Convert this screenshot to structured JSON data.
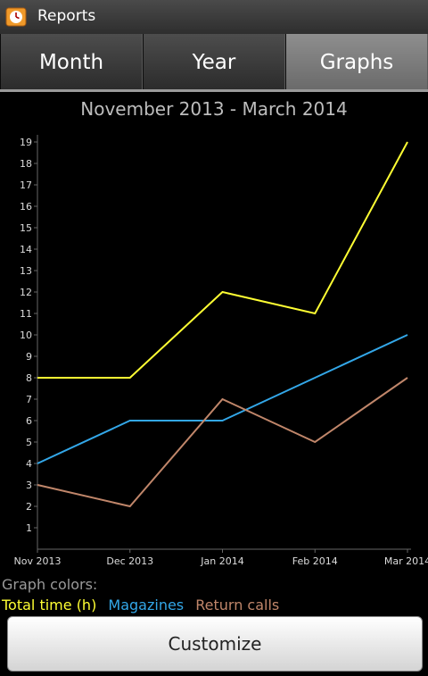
{
  "window": {
    "title": "Reports"
  },
  "tabs": [
    {
      "label": "Month",
      "active": false
    },
    {
      "label": "Year",
      "active": false
    },
    {
      "label": "Graphs",
      "active": true
    }
  ],
  "graph": {
    "title": "November 2013 - March 2014"
  },
  "legend": {
    "heading": "Graph colors:",
    "items": [
      {
        "label": "Total time (h)",
        "color": "#ffff33"
      },
      {
        "label": "Magazines",
        "color": "#33a7e8"
      },
      {
        "label": "Return calls",
        "color": "#c0866a"
      }
    ]
  },
  "buttons": {
    "customize": "Customize"
  },
  "chart_data": {
    "type": "line",
    "title": "November 2013 - March 2014",
    "categories": [
      "Nov 2013",
      "Dec 2013",
      "Jan 2014",
      "Feb 2014",
      "Mar 2014"
    ],
    "series": [
      {
        "name": "Total time (h)",
        "color": "#ffff33",
        "values": [
          8,
          8,
          12,
          11,
          19
        ]
      },
      {
        "name": "Magazines",
        "color": "#33a7e8",
        "values": [
          4,
          6,
          6,
          8,
          10
        ]
      },
      {
        "name": "Return calls",
        "color": "#c0866a",
        "values": [
          3,
          2,
          7,
          5,
          8
        ]
      }
    ],
    "yticks": [
      1,
      2,
      3,
      4,
      5,
      6,
      7,
      8,
      9,
      10,
      11,
      12,
      13,
      14,
      15,
      16,
      17,
      18,
      19
    ],
    "ylim": [
      0,
      19
    ],
    "grid": false
  }
}
